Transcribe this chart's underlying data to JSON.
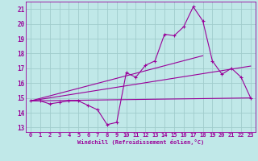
{
  "xlabel": "Windchill (Refroidissement éolien,°C)",
  "bg_color": "#c0e8e8",
  "grid_color": "#a0cccc",
  "line_color": "#990099",
  "xlim": [
    -0.5,
    23.5
  ],
  "ylim": [
    12.7,
    21.5
  ],
  "yticks": [
    13,
    14,
    15,
    16,
    17,
    18,
    19,
    20,
    21
  ],
  "xticks": [
    0,
    1,
    2,
    3,
    4,
    5,
    6,
    7,
    8,
    9,
    10,
    11,
    12,
    13,
    14,
    15,
    16,
    17,
    18,
    19,
    20,
    21,
    22,
    23
  ],
  "line1_x": [
    0,
    1,
    2,
    3,
    4,
    5,
    6,
    7,
    8,
    9,
    10,
    11,
    12,
    13,
    14,
    15,
    16,
    17,
    18,
    19,
    20,
    21,
    22,
    23
  ],
  "line1_y": [
    14.8,
    14.8,
    14.6,
    14.7,
    14.8,
    14.8,
    14.5,
    14.2,
    13.2,
    13.35,
    16.7,
    16.4,
    17.2,
    17.5,
    19.3,
    19.2,
    19.8,
    21.15,
    20.2,
    17.5,
    16.6,
    17.0,
    16.4,
    15.0
  ],
  "line2_x": [
    0,
    23
  ],
  "line2_y": [
    14.8,
    15.0
  ],
  "line3_x": [
    0,
    23
  ],
  "line3_y": [
    14.8,
    17.15
  ],
  "line4_x": [
    0,
    18
  ],
  "line4_y": [
    14.8,
    17.85
  ]
}
